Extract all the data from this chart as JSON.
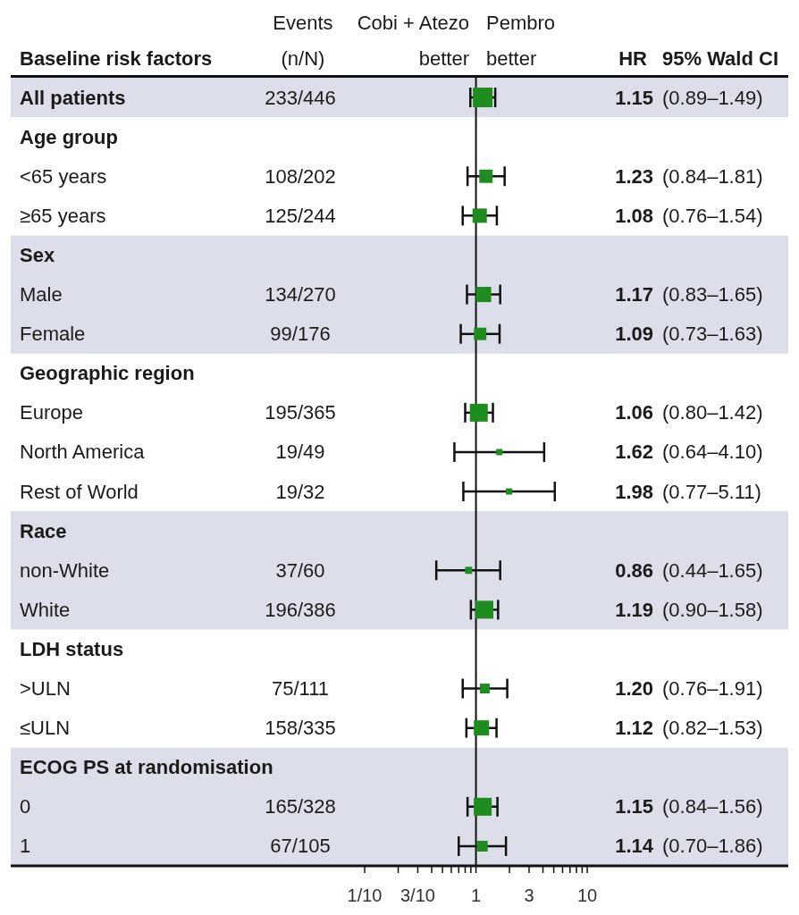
{
  "chart_data": {
    "type": "bubble",
    "orientation": "horizontal",
    "ylabel": "Baseline risk factors",
    "categories": [
      "All patients",
      "Age group",
      "<65 years",
      "≥65 years",
      "Sex",
      "Male",
      "Female",
      "Geographic region",
      "Europe",
      "North America",
      "Rest of World",
      "Race",
      "non-White",
      "White",
      "LDH status",
      ">ULN",
      "≤ULN",
      "ECOG PS at randomisation",
      "0",
      "1"
    ],
    "values": [
      1.15,
      null,
      1.23,
      1.08,
      null,
      1.17,
      1.09,
      null,
      1.06,
      1.62,
      1.98,
      null,
      0.86,
      1.19,
      null,
      1.2,
      1.12,
      null,
      1.15,
      1.14
    ],
    "errors": [
      [
        0.89,
        1.49
      ],
      null,
      [
        0.84,
        1.81
      ],
      [
        0.76,
        1.54
      ],
      null,
      [
        0.83,
        1.65
      ],
      [
        0.73,
        1.63
      ],
      null,
      [
        0.8,
        1.42
      ],
      [
        0.64,
        4.1
      ],
      [
        0.77,
        5.11
      ],
      null,
      [
        0.44,
        1.65
      ],
      [
        0.9,
        1.58
      ],
      null,
      [
        0.76,
        1.91
      ],
      [
        0.82,
        1.53
      ],
      null,
      [
        0.84,
        1.56
      ],
      [
        0.7,
        1.86
      ]
    ],
    "sizes": [
      1,
      null,
      0.46,
      0.53,
      null,
      0.6,
      0.4,
      null,
      0.83,
      0.1,
      0.1,
      null,
      0.13,
      0.83,
      null,
      0.25,
      0.6,
      null,
      0.83,
      0.3
    ],
    "color": "#1e8c1e",
    "marker": "square",
    "log": "x",
    "xlim": [
      6.6e-05,
      640
    ],
    "xticks": [
      {
        "value": 0.1,
        "label": "1/10"
      },
      {
        "value": 0.2,
        "label": null
      },
      {
        "value": 0.3,
        "label": "3/10"
      },
      {
        "value": 0.4,
        "label": null
      },
      {
        "value": 0.5,
        "label": null
      },
      {
        "value": 0.6,
        "label": null
      },
      {
        "value": 0.7,
        "label": null
      },
      {
        "value": 0.8,
        "label": null
      },
      {
        "value": 0.9,
        "label": null
      },
      1,
      {
        "value": 2,
        "label": null
      },
      3,
      {
        "value": 4,
        "label": null
      },
      {
        "value": 5,
        "label": null
      },
      {
        "value": 6,
        "label": null
      },
      {
        "value": 7,
        "label": null
      },
      {
        "value": 8,
        "label": null
      },
      {
        "value": 9,
        "label": null
      },
      10
    ],
    "ref_lines": [
      {
        "axis": "x",
        "value": 1,
        "color": "#111111"
      }
    ],
    "bands": [
      {
        "axis": "y",
        "from": "All patients",
        "to": "All patients",
        "color": "#dcdfea"
      },
      {
        "axis": "y",
        "from": "Sex",
        "to": "Female",
        "color": "#dcdfea"
      },
      {
        "axis": "y",
        "from": "Race",
        "to": "White",
        "color": "#dcdfea"
      },
      {
        "axis": "y",
        "from": "ECOG PS at randomisation",
        "to": "1",
        "color": "#dcdfea"
      }
    ],
    "annotations": [
      "Events (n/N)",
      "Cobi + Atezo better",
      "Pembro better",
      "HR",
      "95% Wald CI",
      "233/446",
      "1.15",
      "(0.89–1.49)",
      "108/202",
      "1.23",
      "(0.84–1.81)",
      "125/244",
      "1.08",
      "(0.76–1.54)",
      "134/270",
      "1.17",
      "(0.83–1.65)",
      "99/176",
      "1.09",
      "(0.73–1.63)",
      "195/365",
      "1.06",
      "(0.80–1.42)",
      "19/49",
      "1.62",
      "(0.64–4.10)",
      "19/32",
      "1.98",
      "(0.77–5.11)",
      "37/60",
      "0.86",
      "(0.44–1.65)",
      "196/386",
      "1.19",
      "(0.90–1.58)",
      "75/111",
      "1.20",
      "(0.76–1.91)",
      "158/335",
      "1.12",
      "(0.82–1.53)",
      "165/328",
      "1.15",
      "(0.84–1.56)",
      "67/105",
      "1.14",
      "(0.70–1.86)"
    ]
  }
}
